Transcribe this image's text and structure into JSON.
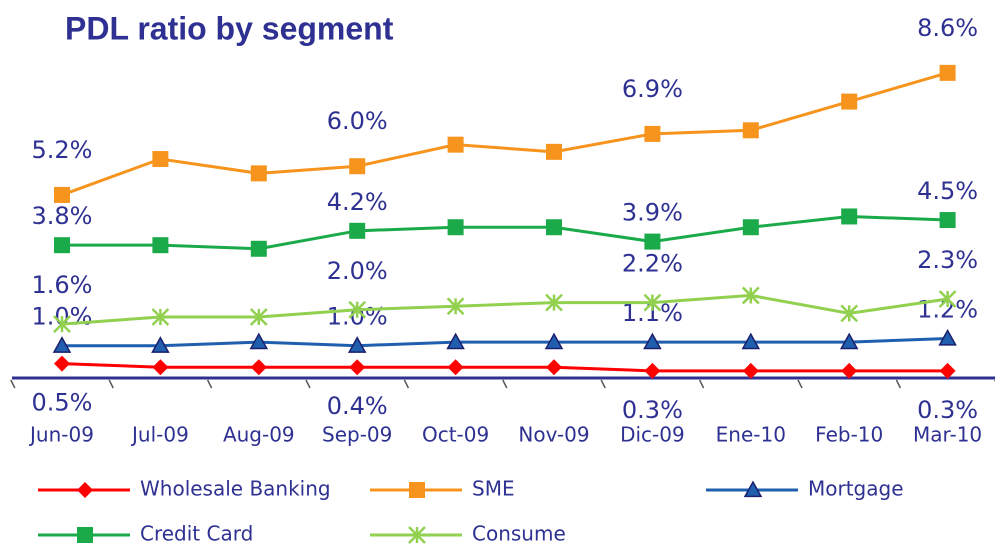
{
  "chart_data": {
    "type": "line",
    "title": "PDL ratio by segment",
    "categories": [
      "Jun-09",
      "Jul-09",
      "Aug-09",
      "Sep-09",
      "Oct-09",
      "Nov-09",
      "Dic-09",
      "Ene-10",
      "Feb-10",
      "Mar-10"
    ],
    "ylim": [
      0,
      9
    ],
    "series": [
      {
        "name": "Wholesale Banking",
        "color": "#ff0000",
        "marker": "diamond",
        "values": [
          0.5,
          0.4,
          0.4,
          0.4,
          0.4,
          0.4,
          0.3,
          0.3,
          0.3,
          0.3
        ],
        "value_labels": [
          "0.5%",
          null,
          null,
          "0.4%",
          null,
          null,
          "0.3%",
          null,
          null,
          "0.3%"
        ]
      },
      {
        "name": "SME",
        "color": "#f7941d",
        "marker": "square",
        "values": [
          5.2,
          6.2,
          5.8,
          6.0,
          6.6,
          6.4,
          6.9,
          7.0,
          7.8,
          8.6
        ],
        "value_labels": [
          "5.2%",
          null,
          null,
          "6.0%",
          null,
          null,
          "6.9%",
          null,
          null,
          "8.6%"
        ]
      },
      {
        "name": "Mortgage",
        "color": "#1f5fae",
        "marker": "triangle",
        "values": [
          1.0,
          1.0,
          1.1,
          1.0,
          1.1,
          1.1,
          1.1,
          1.1,
          1.1,
          1.2
        ],
        "value_labels": [
          "1.0%",
          null,
          null,
          "1.0%",
          null,
          null,
          "1.1%",
          null,
          null,
          "1.2%"
        ]
      },
      {
        "name": "Credit Card",
        "color": "#1aaa4a",
        "marker": "square",
        "values": [
          3.8,
          3.8,
          3.7,
          4.2,
          4.3,
          4.3,
          3.9,
          4.3,
          4.6,
          4.5
        ],
        "value_labels": [
          "3.8%",
          null,
          null,
          "4.2%",
          null,
          null,
          "3.9%",
          null,
          null,
          "4.5%"
        ]
      },
      {
        "name": "Consume",
        "color": "#92d050",
        "marker": "star",
        "values": [
          1.6,
          1.8,
          1.8,
          2.0,
          2.1,
          2.2,
          2.2,
          2.4,
          1.9,
          2.3
        ],
        "value_labels": [
          "1.6%",
          null,
          null,
          "2.0%",
          null,
          null,
          "2.2%",
          null,
          null,
          "2.3%"
        ]
      }
    ],
    "legend": "bottom"
  }
}
